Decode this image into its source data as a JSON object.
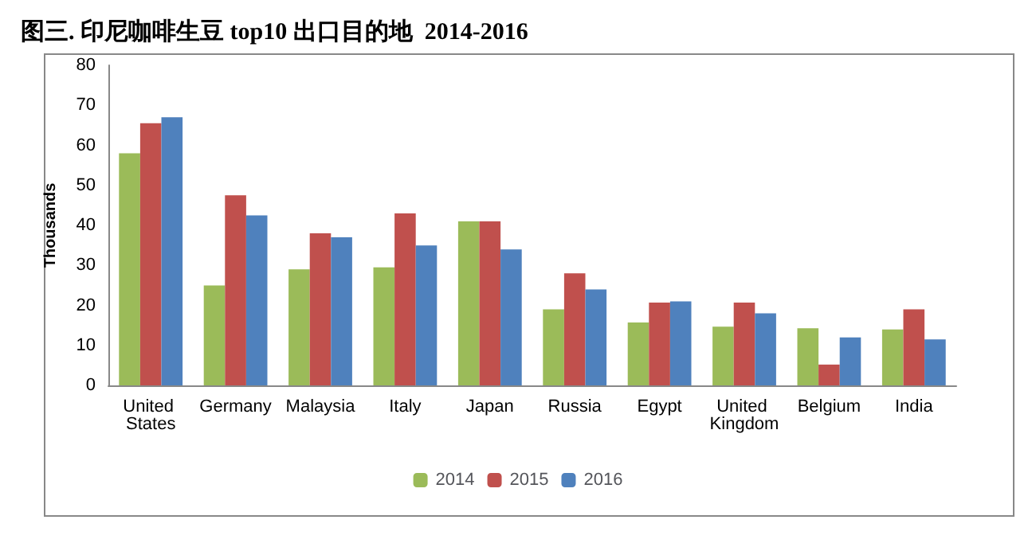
{
  "chart_data": {
    "type": "bar",
    "title": "图三. 印尼咖啡生豆 top10 出口目的地  2014-2016",
    "ylabel": "Thousands",
    "categories": [
      "United States",
      "Germany",
      "Malaysia",
      "Italy",
      "Japan",
      "Russia",
      "Egypt",
      "United Kingdom",
      "Belgium",
      "India"
    ],
    "series": [
      {
        "name": "2014",
        "color": "#9bbb59",
        "values": [
          58,
          25,
          29,
          29.5,
          41,
          19,
          15.7,
          14.7,
          14.3,
          14
        ]
      },
      {
        "name": "2015",
        "color": "#c0504d",
        "values": [
          65.5,
          47.5,
          38,
          43,
          41,
          28,
          20.7,
          20.7,
          5.2,
          19
        ]
      },
      {
        "name": "2016",
        "color": "#4f81bd",
        "values": [
          67,
          42.5,
          37,
          35,
          34,
          24,
          21,
          18,
          12,
          11.5
        ]
      }
    ],
    "ylim": [
      0,
      80
    ],
    "yticks": [
      0,
      10,
      20,
      30,
      40,
      50,
      60,
      70,
      80
    ],
    "grid": false,
    "legend": "bottom"
  }
}
